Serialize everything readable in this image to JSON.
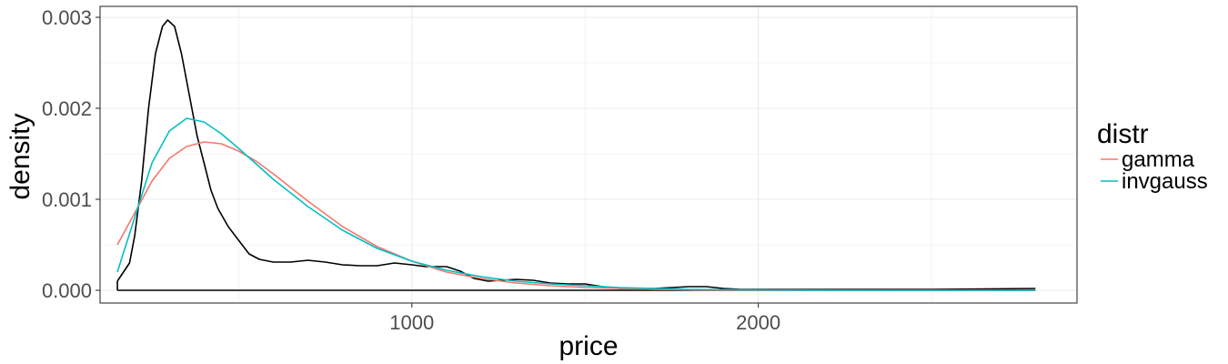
{
  "chart_data": {
    "type": "line",
    "xlabel": "price",
    "ylabel": "density",
    "xlim": [
      100,
      2920
    ],
    "ylim": [
      -0.00014,
      0.00312
    ],
    "x_ticks": [
      1000,
      2000
    ],
    "x_tick_labels": [
      "1000",
      "2000"
    ],
    "y_ticks": [
      0,
      0.001,
      0.002,
      0.003
    ],
    "y_tick_labels": [
      "0.000",
      "0.001",
      "0.002",
      "0.003"
    ],
    "grid": true,
    "legend": {
      "title": "distr",
      "position": "right",
      "entries": [
        {
          "label": "gamma",
          "color": "#F8766D"
        },
        {
          "label": "invgauss",
          "color": "#00BFC4"
        }
      ]
    },
    "series": [
      {
        "id": "empirical",
        "color": "#000000",
        "points": [
          [
            150,
            0.0001
          ],
          [
            185,
            0.0003
          ],
          [
            200,
            0.0006
          ],
          [
            220,
            0.0012
          ],
          [
            240,
            0.002
          ],
          [
            260,
            0.0026
          ],
          [
            280,
            0.0029
          ],
          [
            295,
            0.00297
          ],
          [
            315,
            0.0029
          ],
          [
            335,
            0.0026
          ],
          [
            355,
            0.0022
          ],
          [
            380,
            0.0017
          ],
          [
            400,
            0.0014
          ],
          [
            420,
            0.0011
          ],
          [
            440,
            0.0009
          ],
          [
            470,
            0.0007
          ],
          [
            500,
            0.00055
          ],
          [
            530,
            0.0004
          ],
          [
            560,
            0.00034
          ],
          [
            600,
            0.00031
          ],
          [
            650,
            0.00031
          ],
          [
            700,
            0.00033
          ],
          [
            750,
            0.00031
          ],
          [
            800,
            0.00028
          ],
          [
            850,
            0.00027
          ],
          [
            900,
            0.00027
          ],
          [
            950,
            0.0003
          ],
          [
            1000,
            0.00028
          ],
          [
            1040,
            0.00026
          ],
          [
            1100,
            0.00026
          ],
          [
            1140,
            0.00021
          ],
          [
            1180,
            0.00013
          ],
          [
            1220,
            0.0001
          ],
          [
            1300,
            0.00012
          ],
          [
            1350,
            0.00011
          ],
          [
            1400,
            8e-05
          ],
          [
            1450,
            7e-05
          ],
          [
            1500,
            7e-05
          ],
          [
            1550,
            4e-05
          ],
          [
            1600,
            2e-05
          ],
          [
            1650,
            2e-05
          ],
          [
            1700,
            2e-05
          ],
          [
            1800,
            4e-05
          ],
          [
            1850,
            4e-05
          ],
          [
            1900,
            2e-05
          ],
          [
            1950,
            1e-05
          ],
          [
            2000,
            1e-05
          ],
          [
            2200,
            1e-05
          ],
          [
            2500,
            1e-05
          ],
          [
            2800,
            2e-05
          ]
        ],
        "baseline": [
          150,
          2800
        ]
      },
      {
        "name": "gamma",
        "color": "#F8766D",
        "points": [
          [
            150,
            0.0005
          ],
          [
            200,
            0.00085
          ],
          [
            250,
            0.0012
          ],
          [
            300,
            0.00145
          ],
          [
            350,
            0.00158
          ],
          [
            400,
            0.00163
          ],
          [
            450,
            0.00161
          ],
          [
            500,
            0.00153
          ],
          [
            550,
            0.00142
          ],
          [
            600,
            0.00128
          ],
          [
            700,
            0.00098
          ],
          [
            800,
            0.0007
          ],
          [
            900,
            0.00048
          ],
          [
            1000,
            0.00032
          ],
          [
            1100,
            0.0002
          ],
          [
            1200,
            0.00013
          ],
          [
            1300,
            8e-05
          ],
          [
            1400,
            5e-05
          ],
          [
            1500,
            3e-05
          ],
          [
            1600,
            2e-05
          ],
          [
            1700,
            1e-05
          ],
          [
            1800,
            5e-06
          ],
          [
            2000,
            1e-06
          ],
          [
            2400,
            0
          ],
          [
            2800,
            0
          ]
        ]
      },
      {
        "name": "invgauss",
        "color": "#00BFC4",
        "points": [
          [
            150,
            0.0002
          ],
          [
            200,
            0.0008
          ],
          [
            250,
            0.0014
          ],
          [
            300,
            0.00175
          ],
          [
            350,
            0.00189
          ],
          [
            400,
            0.00185
          ],
          [
            450,
            0.00172
          ],
          [
            500,
            0.00156
          ],
          [
            550,
            0.00139
          ],
          [
            600,
            0.00122
          ],
          [
            700,
            0.00092
          ],
          [
            800,
            0.00066
          ],
          [
            900,
            0.00046
          ],
          [
            1000,
            0.00032
          ],
          [
            1100,
            0.00022
          ],
          [
            1200,
            0.00015
          ],
          [
            1300,
            0.0001
          ],
          [
            1400,
            7e-05
          ],
          [
            1500,
            5e-05
          ],
          [
            1600,
            3e-05
          ],
          [
            1700,
            2e-05
          ],
          [
            1800,
            1e-05
          ],
          [
            2000,
            5e-06
          ],
          [
            2400,
            1e-06
          ],
          [
            2800,
            0
          ]
        ]
      }
    ]
  }
}
